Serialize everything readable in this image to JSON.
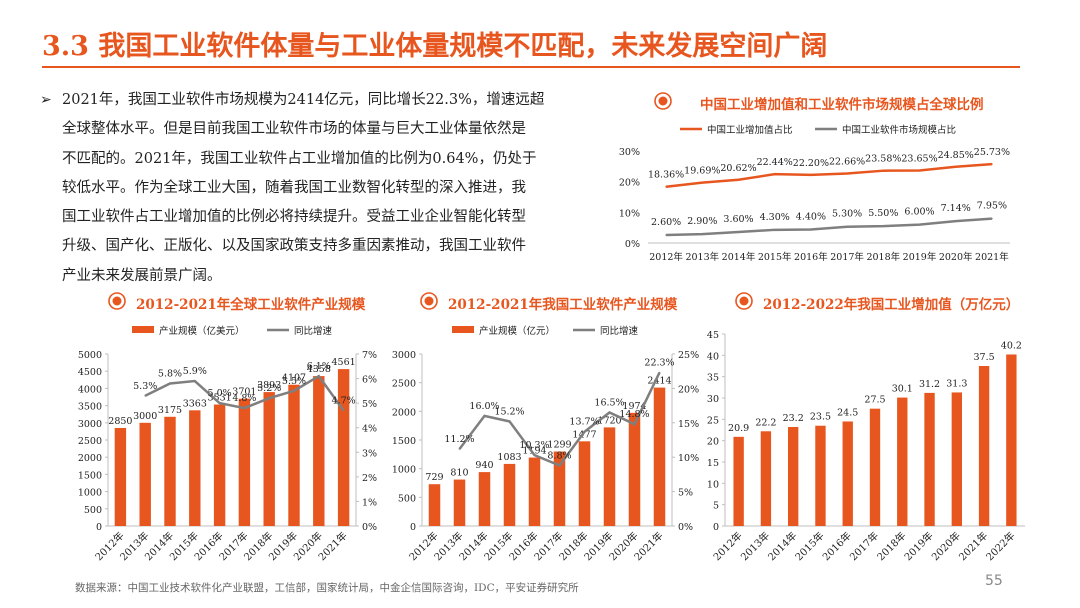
{
  "slide": {
    "title": "3.3 我国工业软件体量与工业体量规模不匹配，未来发展空间广阔",
    "bullet_marker": "➢",
    "bullet_lines": [
      "2021年，我国工业软件市场规模为2414亿元，同比增长22.3%，增速远超",
      "全球整体水平。但是目前我国工业软件市场的体量与巨大工业体量依然是",
      "不匹配的。2021年，我国工业软件占工业增加值的比例为0.64%，仍处于",
      "较低水平。作为全球工业大国，随着我国工业数智化转型的深入推进，我",
      "国工业软件占工业增加值的比例必将持续提升。受益工业企业智能化转型",
      "升级、国产化、正版化、以及国家政策支持多重因素推动，我国工业软件",
      "产业未来发展前景广阔。"
    ],
    "source": "数据来源：中国工业技术软件化产业联盟，工信部，国家统计局，中金企信国际咨询，IDC，平安证券研究所",
    "page_number": "55"
  },
  "colors": {
    "accent": "#E8561F",
    "gray_line": "#7F7F7F",
    "axis": "#BFBFBF"
  },
  "chart_data": [
    {
      "id": "share",
      "type": "line",
      "title": "中国工业增加值和工业软件市场规模占全球比例",
      "categories": [
        "2012年",
        "2013年",
        "2014年",
        "2015年",
        "2016年",
        "2017年",
        "2018年",
        "2019年",
        "2020年",
        "2021年"
      ],
      "series": [
        {
          "name": "中国工业增加值占比",
          "color": "#E8561F",
          "values": [
            18.36,
            19.69,
            20.62,
            22.44,
            22.2,
            22.66,
            23.58,
            23.65,
            24.85,
            25.73
          ],
          "labels": [
            "18.36%",
            "19.69%",
            "20.62%",
            "22.44%",
            "22.20%",
            "22.66%",
            "23.58%",
            "23.65%",
            "24.85%",
            "25.73%"
          ]
        },
        {
          "name": "中国工业软件市场规模占比",
          "color": "#7F7F7F",
          "values": [
            2.6,
            2.9,
            3.6,
            4.3,
            4.4,
            5.3,
            5.5,
            6.0,
            7.14,
            7.95
          ],
          "labels": [
            "2.60%",
            "2.90%",
            "3.60%",
            "4.30%",
            "4.40%",
            "5.30%",
            "5.50%",
            "6.00%",
            "7.14%",
            "7.95%"
          ]
        }
      ],
      "ylim": [
        0,
        30
      ],
      "yticks": [
        "0%",
        "10%",
        "20%",
        "30%"
      ]
    },
    {
      "id": "global",
      "type": "bar+line",
      "title": "2012-2021年全球工业软件产业规模",
      "categories": [
        "2012年",
        "2013年",
        "2014年",
        "2015年",
        "2016年",
        "2017年",
        "2018年",
        "2019年",
        "2020年",
        "2021年"
      ],
      "bar": {
        "name": "产业规模（亿美元）",
        "values": [
          2850,
          3000,
          3175,
          3363,
          3531,
          3701,
          3893,
          4107,
          4358,
          4561
        ]
      },
      "line": {
        "name": "同比增速",
        "values": [
          null,
          5.3,
          5.8,
          5.9,
          5.0,
          4.8,
          5.2,
          5.5,
          6.1,
          4.7
        ],
        "labels": [
          null,
          "5.3%",
          "5.8%",
          "5.9%",
          "5.0%",
          "4.8%",
          "5.2%",
          "5.5%",
          "6.1%",
          "4.7%"
        ]
      },
      "ylim_left": [
        0,
        5000
      ],
      "yticks_left": [
        "0",
        "500",
        "1000",
        "1500",
        "2000",
        "2500",
        "3000",
        "3500",
        "4000",
        "4500",
        "5000"
      ],
      "ylim_right": [
        0,
        7
      ],
      "yticks_right": [
        "0%",
        "1%",
        "2%",
        "3%",
        "4%",
        "5%",
        "6%",
        "7%"
      ]
    },
    {
      "id": "china",
      "type": "bar+line",
      "title": "2012-2021年我国工业软件产业规模",
      "categories": [
        "2012年",
        "2013年",
        "2014年",
        "2015年",
        "2016年",
        "2017年",
        "2018年",
        "2019年",
        "2020年",
        "2021年"
      ],
      "bar": {
        "name": "产业规模（亿元）",
        "values": [
          729,
          810,
          940,
          1083,
          1194,
          1299,
          1477,
          1720,
          1974,
          2414
        ]
      },
      "line": {
        "name": "同比增速",
        "values": [
          null,
          11.2,
          16.0,
          15.2,
          10.3,
          8.8,
          13.7,
          16.5,
          14.8,
          22.3
        ],
        "labels": [
          null,
          "11.2%",
          "16.0%",
          "15.2%",
          "10.3%",
          "8.8%",
          "13.7%",
          "16.5%",
          "14.8%",
          "22.3%"
        ]
      },
      "ylim_left": [
        0,
        3000
      ],
      "yticks_left": [
        "0",
        "500",
        "1000",
        "1500",
        "2000",
        "2500",
        "3000"
      ],
      "ylim_right": [
        0,
        25
      ],
      "yticks_right": [
        "0%",
        "5%",
        "10%",
        "15%",
        "20%",
        "25%"
      ]
    },
    {
      "id": "added",
      "type": "bar",
      "title": "2012-2022年我国工业增加值（万亿元）",
      "categories": [
        "2012年",
        "2013年",
        "2014年",
        "2015年",
        "2016年",
        "2017年",
        "2018年",
        "2019年",
        "2020年",
        "2021年",
        "2022年"
      ],
      "values": [
        20.9,
        22.2,
        23.2,
        23.5,
        24.5,
        27.5,
        30.1,
        31.2,
        31.3,
        37.5,
        40.2
      ],
      "labels": [
        "20.9",
        "22.2",
        "23.2",
        "23.5",
        "24.5",
        "27.5",
        "30.1",
        "31.2",
        "31.3",
        "37.5",
        "40.2"
      ],
      "ylim": [
        0,
        45
      ],
      "yticks": [
        "0",
        "5",
        "10",
        "15",
        "20",
        "25",
        "30",
        "35",
        "40",
        "45"
      ]
    }
  ]
}
